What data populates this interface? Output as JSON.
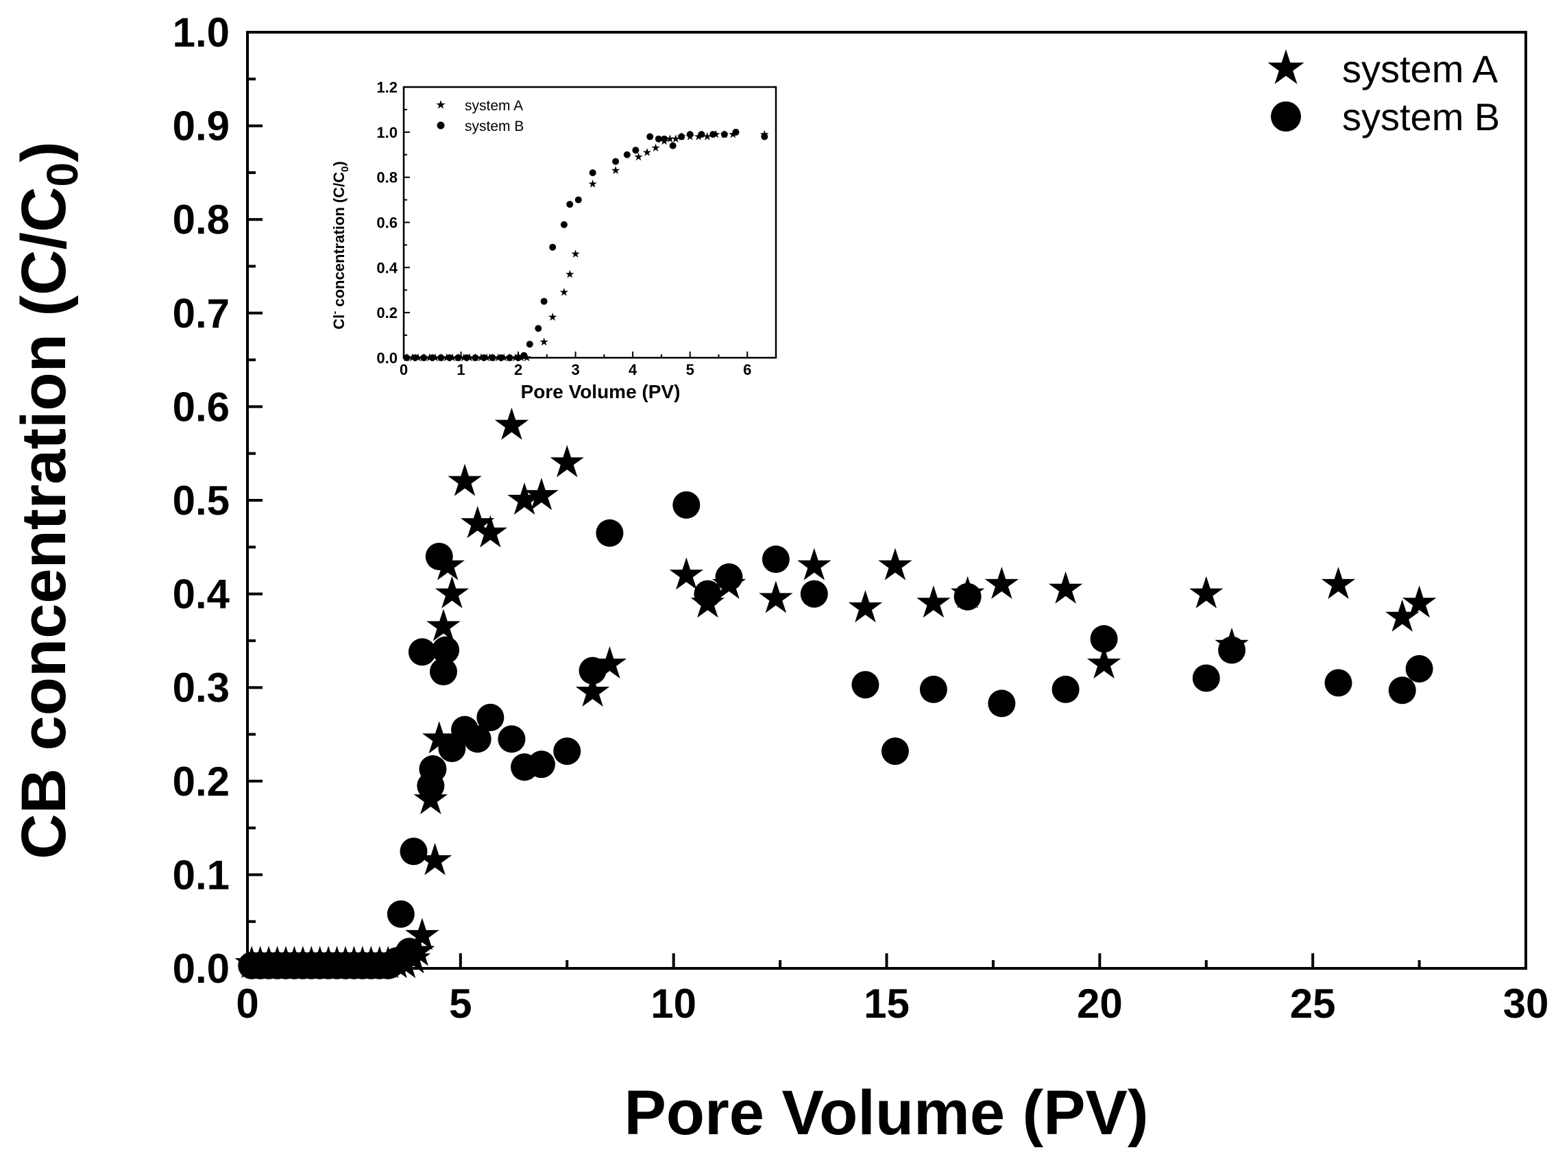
{
  "chart_data": [
    {
      "type": "scatter",
      "xlabel": "Pore Volume (PV)",
      "ylabel": "CB concentration (C/C0)",
      "ylabel_main": "CB concentration (C/C",
      "ylabel_sub": "0",
      "ylabel_close": ")",
      "xlim": [
        0,
        30
      ],
      "ylim": [
        0,
        1.0
      ],
      "x_ticks": [
        "0",
        "5",
        "10",
        "15",
        "20",
        "25",
        "30"
      ],
      "y_ticks": [
        "0.0",
        "0.1",
        "0.2",
        "0.3",
        "0.4",
        "0.5",
        "0.6",
        "0.7",
        "0.8",
        "0.9",
        "1.0"
      ],
      "legend_position": "top-right",
      "series": [
        {
          "name": "system A",
          "marker": "star",
          "x": [
            0.1,
            0.3,
            0.5,
            0.7,
            0.9,
            1.1,
            1.3,
            1.5,
            1.7,
            1.9,
            2.1,
            2.3,
            2.5,
            2.7,
            2.9,
            3.1,
            3.3,
            3.5,
            3.7,
            3.9,
            4.0,
            4.1,
            4.3,
            4.4,
            4.5,
            4.6,
            4.7,
            4.8,
            5.1,
            5.4,
            5.7,
            6.2,
            6.5,
            6.9,
            7.5,
            8.1,
            8.5,
            10.3,
            10.8,
            11.3,
            12.4,
            13.3,
            14.5,
            15.2,
            16.1,
            16.9,
            17.7,
            19.2,
            20.1,
            22.5,
            23.1,
            25.6,
            27.1,
            27.5
          ],
          "y": [
            0.005,
            0.005,
            0.005,
            0.005,
            0.005,
            0.005,
            0.005,
            0.005,
            0.005,
            0.005,
            0.005,
            0.005,
            0.005,
            0.005,
            0.005,
            0.005,
            0.005,
            0.005,
            0.005,
            0.01,
            0.018,
            0.035,
            0.18,
            0.115,
            0.245,
            0.365,
            0.43,
            0.4,
            0.52,
            0.475,
            0.465,
            0.58,
            0.5,
            0.505,
            0.54,
            0.295,
            0.325,
            0.42,
            0.39,
            0.41,
            0.395,
            0.43,
            0.385,
            0.43,
            0.39,
            0.4,
            0.41,
            0.405,
            0.325,
            0.4,
            0.345,
            0.41,
            0.375,
            0.39
          ]
        },
        {
          "name": "system B",
          "marker": "circle",
          "x": [
            0.1,
            0.3,
            0.5,
            0.7,
            0.9,
            1.1,
            1.3,
            1.5,
            1.7,
            1.9,
            2.1,
            2.3,
            2.5,
            2.7,
            2.9,
            3.1,
            3.3,
            3.5,
            3.6,
            3.8,
            3.9,
            4.1,
            4.3,
            4.35,
            4.5,
            4.6,
            4.65,
            4.8,
            5.1,
            5.4,
            5.7,
            6.2,
            6.5,
            6.9,
            7.5,
            8.1,
            8.5,
            10.3,
            10.8,
            11.3,
            12.4,
            13.3,
            14.5,
            15.2,
            16.1,
            16.9,
            17.7,
            19.2,
            20.1,
            22.5,
            23.1,
            25.6,
            27.1,
            27.5
          ],
          "y": [
            0.003,
            0.003,
            0.003,
            0.003,
            0.003,
            0.003,
            0.003,
            0.003,
            0.003,
            0.003,
            0.003,
            0.003,
            0.003,
            0.003,
            0.003,
            0.003,
            0.003,
            0.008,
            0.058,
            0.018,
            0.125,
            0.338,
            0.195,
            0.213,
            0.44,
            0.317,
            0.34,
            0.235,
            0.255,
            0.245,
            0.268,
            0.245,
            0.215,
            0.218,
            0.232,
            0.318,
            0.465,
            0.495,
            0.4,
            0.418,
            0.437,
            0.4,
            0.303,
            0.232,
            0.298,
            0.397,
            0.283,
            0.298,
            0.352,
            0.31,
            0.34,
            0.305,
            0.297,
            0.32
          ]
        }
      ]
    },
    {
      "type": "scatter",
      "role": "inset",
      "xlabel": "Pore Volume (PV)",
      "ylabel": "Cl- concentration (C/C0)",
      "ylabel_a": "Cl",
      "ylabel_sup": "-",
      "ylabel_b": " concentration (C/C",
      "ylabel_sub": "0",
      "ylabel_close": ")",
      "xlim": [
        0,
        6.5
      ],
      "ylim": [
        0,
        1.2
      ],
      "x_ticks": [
        "0",
        "1",
        "2",
        "3",
        "4",
        "5",
        "6"
      ],
      "y_ticks": [
        "0.0",
        "0.2",
        "0.4",
        "0.6",
        "0.8",
        "1.0",
        "1.2"
      ],
      "legend_position": "top-left",
      "series": [
        {
          "name": "system A",
          "marker": "star",
          "x": [
            0.05,
            0.15,
            0.25,
            0.35,
            0.45,
            0.55,
            0.65,
            0.75,
            0.85,
            0.95,
            1.05,
            1.15,
            1.25,
            1.35,
            1.45,
            1.55,
            1.65,
            1.75,
            1.85,
            1.95,
            2.05,
            2.15,
            2.45,
            2.6,
            2.8,
            2.9,
            3.0,
            3.3,
            3.7,
            4.1,
            4.25,
            4.4,
            4.55,
            4.65,
            4.75,
            4.85,
            5.0,
            5.15,
            5.3,
            5.45,
            5.6,
            5.75,
            6.3
          ],
          "y": [
            0.0,
            0.0,
            0.0,
            0.0,
            0.0,
            0.0,
            0.0,
            0.0,
            0.0,
            0.0,
            0.0,
            0.0,
            0.0,
            0.0,
            0.0,
            0.0,
            0.0,
            0.0,
            0.0,
            0.0,
            0.0,
            0.0,
            0.07,
            0.18,
            0.29,
            0.37,
            0.46,
            0.77,
            0.83,
            0.89,
            0.91,
            0.93,
            0.96,
            0.97,
            0.97,
            0.98,
            0.98,
            0.98,
            0.98,
            0.99,
            0.99,
            0.99,
            0.99
          ]
        },
        {
          "name": "system B",
          "marker": "circle",
          "x": [
            0.05,
            0.2,
            0.35,
            0.5,
            0.65,
            0.8,
            0.95,
            1.1,
            1.25,
            1.4,
            1.55,
            1.7,
            1.85,
            2.0,
            2.1,
            2.2,
            2.35,
            2.45,
            2.6,
            2.8,
            2.9,
            3.05,
            3.3,
            3.7,
            3.9,
            4.05,
            4.3,
            4.45,
            4.55,
            4.7,
            4.85,
            5.0,
            5.2,
            5.4,
            5.6,
            5.8,
            6.3
          ],
          "y": [
            0.0,
            0.0,
            0.0,
            0.0,
            0.0,
            0.0,
            0.0,
            0.0,
            0.0,
            0.0,
            0.0,
            0.0,
            0.0,
            0.0,
            0.01,
            0.06,
            0.13,
            0.25,
            0.49,
            0.59,
            0.68,
            0.7,
            0.82,
            0.87,
            0.9,
            0.92,
            0.98,
            0.97,
            0.97,
            0.94,
            0.98,
            0.99,
            0.99,
            0.99,
            0.99,
            1.0,
            0.98
          ]
        }
      ]
    }
  ]
}
